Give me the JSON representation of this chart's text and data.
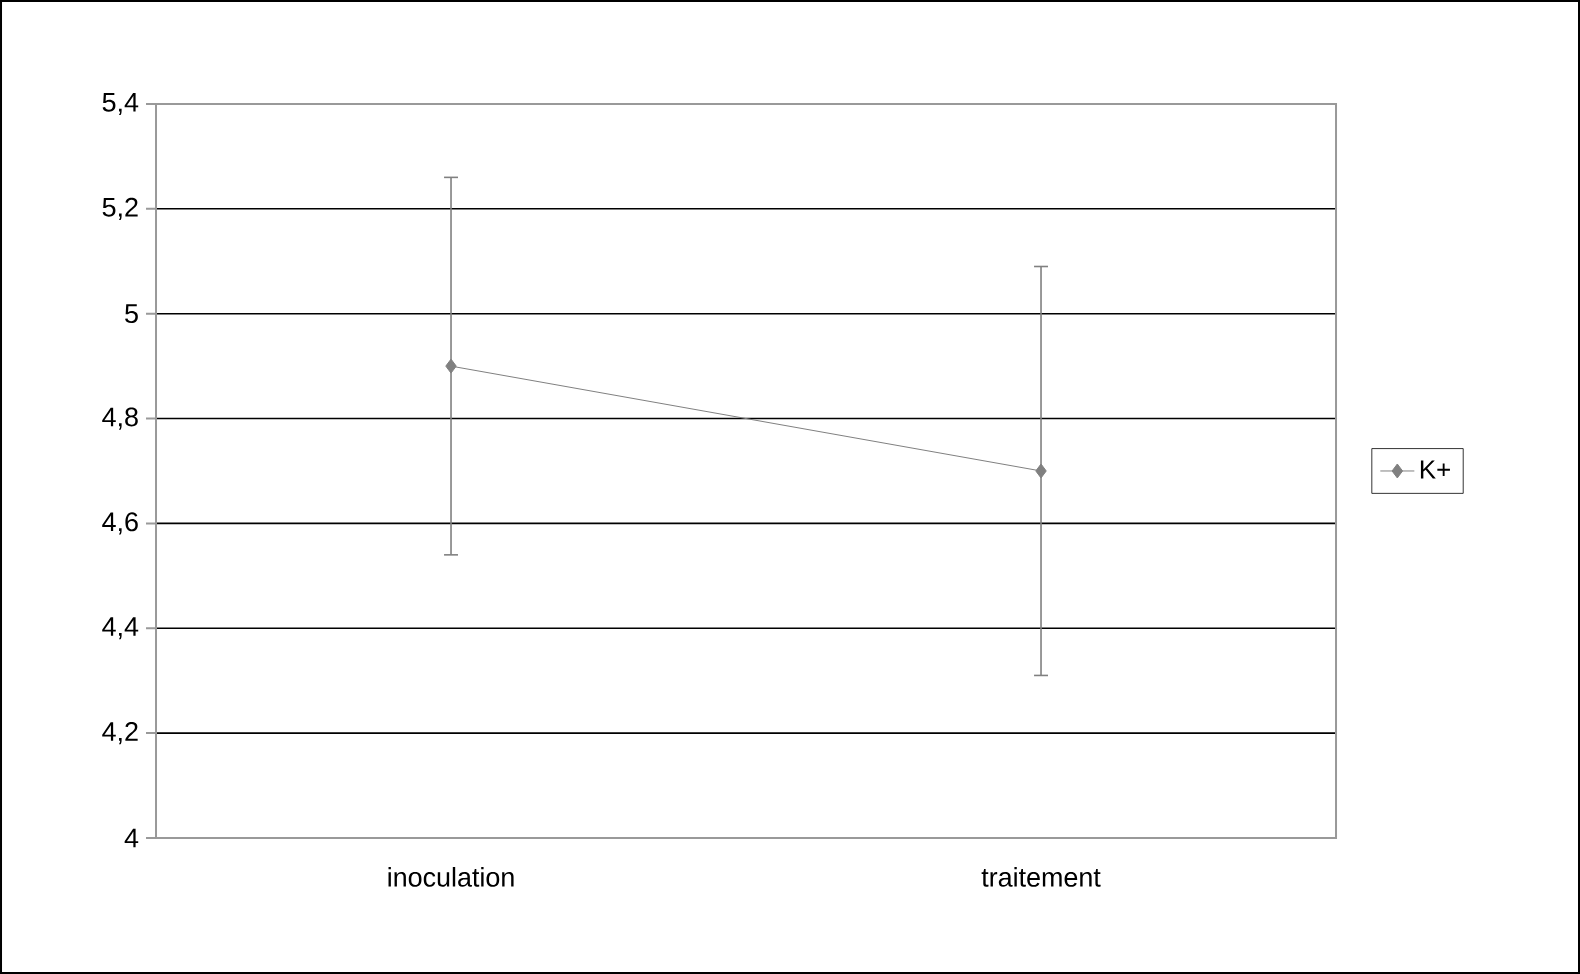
{
  "chart_data": {
    "type": "line",
    "categories": [
      "inoculation",
      "traitement"
    ],
    "series": [
      {
        "name": "K+",
        "color": "#808080",
        "values": [
          4.9,
          4.7
        ],
        "errors": [
          0.36,
          0.39
        ]
      }
    ],
    "ylim": [
      4,
      5.4
    ],
    "yticks": [
      {
        "value": 4,
        "label": "4"
      },
      {
        "value": 4.2,
        "label": "4,2"
      },
      {
        "value": 4.4,
        "label": "4,4"
      },
      {
        "value": 4.6,
        "label": "4,6"
      },
      {
        "value": 4.8,
        "label": "4,8"
      },
      {
        "value": 5,
        "label": "5"
      },
      {
        "value": 5.2,
        "label": "5,2"
      },
      {
        "value": 5.4,
        "label": "5,4"
      }
    ],
    "grid": "y",
    "legend": "right",
    "marker": "diamond",
    "line_style": "solid"
  }
}
